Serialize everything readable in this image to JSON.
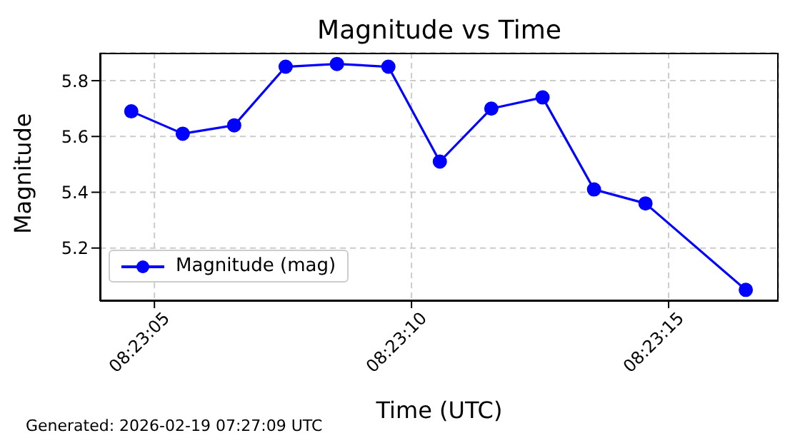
{
  "chart_data": {
    "type": "line",
    "title": "Magnitude vs Time",
    "xlabel": "Time (UTC)",
    "ylabel": "Magnitude",
    "annotations": [
      "Generated: 2026-02-19 07:27:09 UTC"
    ],
    "x": [
      8.384597,
      8.384875,
      8.385153,
      8.385431,
      8.385708,
      8.385986,
      8.386264,
      8.386542,
      8.386819,
      8.387097,
      8.387375,
      8.387917
    ],
    "series": [
      {
        "name": "Magnitude (mag)",
        "color": "#0000ff",
        "values": [
          5.69,
          5.61,
          5.64,
          5.85,
          5.86,
          5.85,
          5.51,
          5.7,
          5.74,
          5.41,
          5.36,
          5.05
        ]
      }
    ],
    "xlim": [
      8.384428,
      8.388094
    ],
    "xticks": [
      {
        "value": 8.384722,
        "label": "08:23:05"
      },
      {
        "value": 8.386111,
        "label": "08:23:10"
      },
      {
        "value": 8.3875,
        "label": "08:23:15"
      }
    ],
    "ylim": [
      5.01,
      5.9
    ],
    "yticks": [
      5.2,
      5.4,
      5.6,
      5.8
    ],
    "grid": true,
    "legend": "bottom left",
    "marker": "circle",
    "line_style": "solid"
  }
}
